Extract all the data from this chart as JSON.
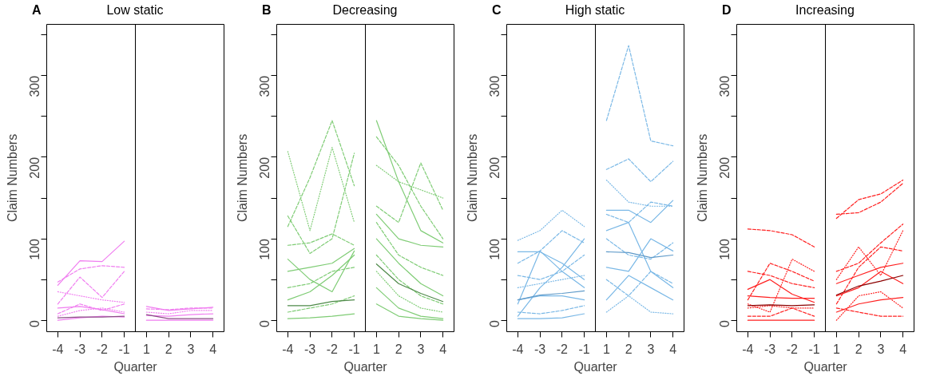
{
  "chart_data": [
    {
      "type": "line",
      "title": "Low static",
      "annotations": [
        "A"
      ],
      "xlabel": "Quarter",
      "ylabel": "Claim Numbers",
      "categories": [
        "-4",
        "-3",
        "-2",
        "-1",
        "1",
        "2",
        "3",
        "4"
      ],
      "ylim": [
        -14,
        363
      ],
      "yticks": [
        0,
        {
          "value": 50,
          "label": null
        },
        100,
        {
          "value": 150,
          "label": null
        },
        200,
        {
          "value": 250,
          "label": null
        },
        300,
        {
          "value": 350,
          "label": null
        }
      ],
      "grid": false,
      "series": [
        {
          "color": "#f07ef0",
          "line_style": "solid",
          "x": [
            "-4",
            "-3",
            "-2",
            "-1"
          ],
          "values": [
            43,
            73,
            72,
            97
          ]
        },
        {
          "color": "#f07ef0",
          "line_style": "dashed",
          "x": [
            "-4",
            "-3",
            "-2",
            "-1"
          ],
          "values": [
            47,
            63,
            67,
            65
          ]
        },
        {
          "color": "#f07ef0",
          "line_style": "dashed",
          "x": [
            "-4",
            "-3",
            "-2",
            "-1"
          ],
          "values": [
            20,
            53,
            28,
            60
          ]
        },
        {
          "color": "#f07ef0",
          "line_style": "dotted",
          "x": [
            "-4",
            "-3",
            "-2",
            "-1"
          ],
          "values": [
            35,
            30,
            25,
            22
          ]
        },
        {
          "color": "#f07ef0",
          "line_style": "dashed",
          "x": [
            "-4",
            "-3",
            "-2",
            "-1"
          ],
          "values": [
            8,
            20,
            12,
            20
          ]
        },
        {
          "color": "#f07ef0",
          "line_style": "solid",
          "x": [
            "-4",
            "-3",
            "-2",
            "-1"
          ],
          "values": [
            15,
            17,
            13,
            8
          ]
        },
        {
          "color": "#f07ef0",
          "line_style": "dotted",
          "x": [
            "-4",
            "-3",
            "-2",
            "-1"
          ],
          "values": [
            5,
            12,
            15,
            10
          ]
        },
        {
          "color": "#f07ef0",
          "line_style": "solid",
          "x": [
            "-4",
            "-3",
            "-2",
            "-1"
          ],
          "values": [
            0,
            3,
            5,
            4
          ]
        },
        {
          "color": "#f07ef0",
          "line_style": "solid",
          "x": [
            "1",
            "2",
            "3",
            "4"
          ],
          "values": [
            17,
            12,
            14,
            16
          ]
        },
        {
          "color": "#f07ef0",
          "line_style": "dashed",
          "x": [
            "1",
            "2",
            "3",
            "4"
          ],
          "values": [
            14,
            13,
            15,
            15
          ]
        },
        {
          "color": "#f07ef0",
          "line_style": "dotted",
          "x": [
            "1",
            "2",
            "3",
            "4"
          ],
          "values": [
            10,
            8,
            12,
            12
          ]
        },
        {
          "color": "#f07ef0",
          "line_style": "solid",
          "x": [
            "1",
            "2",
            "3",
            "4"
          ],
          "values": [
            6,
            5,
            7,
            8
          ]
        },
        {
          "color": "#f07ef0",
          "line_style": "solid",
          "x": [
            "1",
            "2",
            "3",
            "4"
          ],
          "values": [
            0,
            0,
            0,
            0
          ]
        },
        {
          "color": "#8b4f86",
          "line_style": "solid",
          "x": [
            "-4",
            "-3",
            "-2",
            "-1"
          ],
          "values": [
            3,
            4,
            4,
            5
          ]
        },
        {
          "color": "#8b4f86",
          "line_style": "solid",
          "x": [
            "1",
            "2",
            "3",
            "4"
          ],
          "values": [
            7,
            2,
            2,
            2
          ]
        }
      ]
    },
    {
      "type": "line",
      "title": "Decreasing",
      "annotations": [
        "B"
      ],
      "xlabel": "Quarter",
      "ylabel": "Claim Numbers",
      "categories": [
        "-4",
        "-3",
        "-2",
        "-1",
        "1",
        "2",
        "3",
        "4"
      ],
      "ylim": [
        -14,
        363
      ],
      "yticks": [
        0,
        {
          "value": 50,
          "label": null
        },
        100,
        {
          "value": 150,
          "label": null
        },
        200,
        {
          "value": 250,
          "label": null
        },
        300,
        {
          "value": 350,
          "label": null
        }
      ],
      "grid": false,
      "series": [
        {
          "color": "#7fcc75",
          "line_style": "dashed",
          "x": [
            "-4",
            "-3",
            "-2",
            "-1"
          ],
          "values": [
            115,
            175,
            245,
            165
          ]
        },
        {
          "color": "#7fcc75",
          "line_style": "dotted",
          "x": [
            "-4",
            "-3",
            "-2",
            "-1"
          ],
          "values": [
            207,
            110,
            212,
            120
          ]
        },
        {
          "color": "#7fcc75",
          "line_style": "dashed",
          "x": [
            "-4",
            "-3",
            "-2",
            "-1"
          ],
          "values": [
            128,
            82,
            100,
            205
          ]
        },
        {
          "color": "#7fcc75",
          "line_style": "dashed",
          "x": [
            "-4",
            "-3",
            "-2",
            "-1"
          ],
          "values": [
            92,
            95,
            106,
            92
          ]
        },
        {
          "color": "#7fcc75",
          "line_style": "solid",
          "x": [
            "-4",
            "-3",
            "-2",
            "-1"
          ],
          "values": [
            75,
            50,
            35,
            85
          ]
        },
        {
          "color": "#7fcc75",
          "line_style": "solid",
          "x": [
            "-4",
            "-3",
            "-2",
            "-1"
          ],
          "values": [
            60,
            65,
            70,
            88
          ]
        },
        {
          "color": "#7fcc75",
          "line_style": "dashed",
          "x": [
            "-4",
            "-3",
            "-2",
            "-1"
          ],
          "values": [
            40,
            45,
            60,
            65
          ]
        },
        {
          "color": "#7fcc75",
          "line_style": "solid",
          "x": [
            "-4",
            "-3",
            "-2",
            "-1"
          ],
          "values": [
            25,
            35,
            55,
            80
          ]
        },
        {
          "color": "#7fcc75",
          "line_style": "dashed",
          "x": [
            "-4",
            "-3",
            "-2",
            "-1"
          ],
          "values": [
            10,
            15,
            20,
            30
          ]
        },
        {
          "color": "#7fcc75",
          "line_style": "solid",
          "x": [
            "-4",
            "-3",
            "-2",
            "-1"
          ],
          "values": [
            2,
            3,
            5,
            8
          ]
        },
        {
          "color": "#7fcc75",
          "line_style": "solid",
          "x": [
            "1",
            "2",
            "3",
            "4"
          ],
          "values": [
            245,
            170,
            110,
            95
          ]
        },
        {
          "color": "#7fcc75",
          "line_style": "dashed",
          "x": [
            "1",
            "2",
            "3",
            "4"
          ],
          "values": [
            225,
            190,
            140,
            100
          ]
        },
        {
          "color": "#7fcc75",
          "line_style": "dashed",
          "x": [
            "1",
            "2",
            "3",
            "4"
          ],
          "values": [
            140,
            120,
            193,
            135
          ]
        },
        {
          "color": "#7fcc75",
          "line_style": "dotted",
          "x": [
            "1",
            "2",
            "3",
            "4"
          ],
          "values": [
            190,
            170,
            160,
            150
          ]
        },
        {
          "color": "#7fcc75",
          "line_style": "solid",
          "x": [
            "1",
            "2",
            "3",
            "4"
          ],
          "values": [
            130,
            100,
            92,
            90
          ]
        },
        {
          "color": "#7fcc75",
          "line_style": "dashed",
          "x": [
            "1",
            "2",
            "3",
            "4"
          ],
          "values": [
            120,
            80,
            65,
            55
          ]
        },
        {
          "color": "#7fcc75",
          "line_style": "solid",
          "x": [
            "1",
            "2",
            "3",
            "4"
          ],
          "values": [
            100,
            70,
            45,
            30
          ]
        },
        {
          "color": "#7fcc75",
          "line_style": "dashed",
          "x": [
            "1",
            "2",
            "3",
            "4"
          ],
          "values": [
            80,
            50,
            30,
            20
          ]
        },
        {
          "color": "#7fcc75",
          "line_style": "dotted",
          "x": [
            "1",
            "2",
            "3",
            "4"
          ],
          "values": [
            60,
            30,
            15,
            10
          ]
        },
        {
          "color": "#7fcc75",
          "line_style": "solid",
          "x": [
            "1",
            "2",
            "3",
            "4"
          ],
          "values": [
            40,
            15,
            5,
            2
          ]
        },
        {
          "color": "#7fcc75",
          "line_style": "solid",
          "x": [
            "1",
            "2",
            "3",
            "4"
          ],
          "values": [
            20,
            5,
            2,
            0
          ]
        },
        {
          "color": "#4f8a4a",
          "line_style": "solid",
          "x": [
            "-4",
            "-3",
            "-2",
            "-1"
          ],
          "values": [
            18,
            18,
            23,
            25
          ]
        },
        {
          "color": "#4f8a4a",
          "line_style": "solid",
          "x": [
            "1",
            "2",
            "3",
            "4"
          ],
          "values": [
            69,
            45,
            33,
            23
          ]
        }
      ]
    },
    {
      "type": "line",
      "title": "High static",
      "annotations": [
        "C"
      ],
      "xlabel": "Quarter",
      "ylabel": "Claim Numbers",
      "categories": [
        "-4",
        "-3",
        "-2",
        "-1",
        "1",
        "2",
        "3",
        "4"
      ],
      "ylim": [
        -14,
        363
      ],
      "yticks": [
        0,
        {
          "value": 50,
          "label": null
        },
        100,
        {
          "value": 150,
          "label": null
        },
        200,
        {
          "value": 250,
          "label": null
        },
        300,
        {
          "value": 350,
          "label": null
        }
      ],
      "grid": false,
      "series": [
        {
          "color": "#7ab8e6",
          "line_style": "dotted",
          "x": [
            "-4",
            "-3",
            "-2",
            "-1"
          ],
          "values": [
            98,
            110,
            135,
            115
          ]
        },
        {
          "color": "#7ab8e6",
          "line_style": "solid",
          "x": [
            "-4",
            "-3",
            "-2",
            "-1"
          ],
          "values": [
            84,
            84,
            70,
            50
          ]
        },
        {
          "color": "#7ab8e6",
          "line_style": "dashed",
          "x": [
            "-4",
            "-3",
            "-2",
            "-1"
          ],
          "values": [
            70,
            85,
            110,
            95
          ]
        },
        {
          "color": "#7ab8e6",
          "line_style": "solid",
          "x": [
            "-4",
            "-3",
            "-2",
            "-1"
          ],
          "values": [
            5,
            40,
            65,
            100
          ]
        },
        {
          "color": "#7ab8e6",
          "line_style": "solid",
          "x": [
            "-4",
            "-3",
            "-2",
            "-1"
          ],
          "values": [
            20,
            85,
            60,
            40
          ]
        },
        {
          "color": "#7ab8e6",
          "line_style": "dashed",
          "x": [
            "-4",
            "-3",
            "-2",
            "-1"
          ],
          "values": [
            55,
            50,
            60,
            80
          ]
        },
        {
          "color": "#7ab8e6",
          "line_style": "dotted",
          "x": [
            "-4",
            "-3",
            "-2",
            "-1"
          ],
          "values": [
            40,
            45,
            50,
            55
          ]
        },
        {
          "color": "#7ab8e6",
          "line_style": "solid",
          "x": [
            "-4",
            "-3",
            "-2",
            "-1"
          ],
          "values": [
            25,
            30,
            30,
            25
          ]
        },
        {
          "color": "#7ab8e6",
          "line_style": "dashed",
          "x": [
            "-4",
            "-3",
            "-2",
            "-1"
          ],
          "values": [
            10,
            8,
            12,
            18
          ]
        },
        {
          "color": "#7ab8e6",
          "line_style": "solid",
          "x": [
            "-4",
            "-3",
            "-2",
            "-1"
          ],
          "values": [
            2,
            2,
            3,
            8
          ]
        },
        {
          "color": "#7ab8e6",
          "line_style": "dashed",
          "x": [
            "1",
            "2",
            "3",
            "4"
          ],
          "values": [
            245,
            337,
            220,
            214
          ]
        },
        {
          "color": "#7ab8e6",
          "line_style": "dashed",
          "x": [
            "1",
            "2",
            "3",
            "4"
          ],
          "values": [
            185,
            198,
            170,
            195
          ]
        },
        {
          "color": "#7ab8e6",
          "line_style": "dotted",
          "x": [
            "1",
            "2",
            "3",
            "4"
          ],
          "values": [
            172,
            145,
            140,
            140
          ]
        },
        {
          "color": "#7ab8e6",
          "line_style": "solid",
          "x": [
            "1",
            "2",
            "3",
            "4"
          ],
          "values": [
            135,
            135,
            120,
            147
          ]
        },
        {
          "color": "#7ab8e6",
          "line_style": "dashed",
          "x": [
            "1",
            "2",
            "3",
            "4"
          ],
          "values": [
            130,
            120,
            145,
            140
          ]
        },
        {
          "color": "#7ab8e6",
          "line_style": "solid",
          "x": [
            "1",
            "2",
            "3",
            "4"
          ],
          "values": [
            110,
            120,
            60,
            40
          ]
        },
        {
          "color": "#7ab8e6",
          "line_style": "dashed",
          "x": [
            "1",
            "2",
            "3",
            "4"
          ],
          "values": [
            100,
            80,
            75,
            95
          ]
        },
        {
          "color": "#7ab8e6",
          "line_style": "solid",
          "x": [
            "1",
            "2",
            "3",
            "4"
          ],
          "values": [
            65,
            60,
            100,
            85
          ]
        },
        {
          "color": "#7ab8e6",
          "line_style": "dashed",
          "x": [
            "1",
            "2",
            "3",
            "4"
          ],
          "values": [
            50,
            30,
            60,
            45
          ]
        },
        {
          "color": "#7ab8e6",
          "line_style": "solid",
          "x": [
            "1",
            "2",
            "3",
            "4"
          ],
          "values": [
            25,
            55,
            40,
            25
          ]
        },
        {
          "color": "#7ab8e6",
          "line_style": "dotted",
          "x": [
            "1",
            "2",
            "3",
            "4"
          ],
          "values": [
            10,
            30,
            10,
            8
          ]
        },
        {
          "color": "#5f9ac9",
          "line_style": "solid",
          "x": [
            "-4",
            "-3",
            "-2",
            "-1"
          ],
          "values": [
            25,
            31,
            33,
            36
          ]
        },
        {
          "color": "#5f9ac9",
          "line_style": "solid",
          "x": [
            "1",
            "2",
            "3",
            "4"
          ],
          "values": [
            84,
            83,
            77,
            80
          ]
        }
      ]
    },
    {
      "type": "line",
      "title": "Increasing",
      "annotations": [
        "D"
      ],
      "xlabel": "Quarter",
      "ylabel": "Claim Numbers",
      "categories": [
        "-4",
        "-3",
        "-2",
        "-1",
        "1",
        "2",
        "3",
        "4"
      ],
      "ylim": [
        -14,
        363
      ],
      "yticks": [
        0,
        {
          "value": 50,
          "label": null
        },
        100,
        {
          "value": 150,
          "label": null
        },
        200,
        {
          "value": 250,
          "label": null
        },
        300,
        {
          "value": 350,
          "label": null
        }
      ],
      "grid": false,
      "series": [
        {
          "color": "#ff2020",
          "line_style": "dashed",
          "x": [
            "-4",
            "-3",
            "-2",
            "-1"
          ],
          "values": [
            112,
            110,
            105,
            90
          ]
        },
        {
          "color": "#ff2020",
          "line_style": "dashed",
          "x": [
            "-4",
            "-3",
            "-2",
            "-1"
          ],
          "values": [
            60,
            55,
            45,
            40
          ]
        },
        {
          "color": "#ff2020",
          "line_style": "dashed",
          "x": [
            "-4",
            "-3",
            "-2",
            "-1"
          ],
          "values": [
            25,
            70,
            60,
            48
          ]
        },
        {
          "color": "#ff2020",
          "line_style": "dotted",
          "x": [
            "-4",
            "-3",
            "-2",
            "-1"
          ],
          "values": [
            20,
            10,
            75,
            60
          ]
        },
        {
          "color": "#ff2020",
          "line_style": "solid",
          "x": [
            "-4",
            "-3",
            "-2",
            "-1"
          ],
          "values": [
            38,
            50,
            32,
            22
          ]
        },
        {
          "color": "#ff2020",
          "line_style": "solid",
          "x": [
            "-4",
            "-3",
            "-2",
            "-1"
          ],
          "values": [
            30,
            28,
            27,
            27
          ]
        },
        {
          "color": "#ff2020",
          "line_style": "dotted",
          "x": [
            "-4",
            "-3",
            "-2",
            "-1"
          ],
          "values": [
            15,
            18,
            15,
            15
          ]
        },
        {
          "color": "#ff2020",
          "line_style": "dashed",
          "x": [
            "-4",
            "-3",
            "-2",
            "-1"
          ],
          "values": [
            5,
            5,
            15,
            5
          ]
        },
        {
          "color": "#ff2020",
          "line_style": "solid",
          "x": [
            "-4",
            "-3",
            "-2",
            "-1"
          ],
          "values": [
            0,
            0,
            0,
            0
          ]
        },
        {
          "color": "#ff2020",
          "line_style": "dashed",
          "x": [
            "1",
            "2",
            "3",
            "4"
          ],
          "values": [
            125,
            148,
            155,
            172
          ]
        },
        {
          "color": "#ff2020",
          "line_style": "dashed",
          "x": [
            "1",
            "2",
            "3",
            "4"
          ],
          "values": [
            130,
            132,
            145,
            168
          ]
        },
        {
          "color": "#ff2020",
          "line_style": "dashed",
          "x": [
            "1",
            "2",
            "3",
            "4"
          ],
          "values": [
            60,
            70,
            95,
            118
          ]
        },
        {
          "color": "#ff2020",
          "line_style": "dotted",
          "x": [
            "1",
            "2",
            "3",
            "4"
          ],
          "values": [
            50,
            90,
            55,
            110
          ]
        },
        {
          "color": "#ff2020",
          "line_style": "solid",
          "x": [
            "1",
            "2",
            "3",
            "4"
          ],
          "values": [
            45,
            55,
            65,
            70
          ]
        },
        {
          "color": "#ff2020",
          "line_style": "dashed",
          "x": [
            "1",
            "2",
            "3",
            "4"
          ],
          "values": [
            20,
            65,
            90,
            85
          ]
        },
        {
          "color": "#ff2020",
          "line_style": "solid",
          "x": [
            "1",
            "2",
            "3",
            "4"
          ],
          "values": [
            30,
            40,
            60,
            45
          ]
        },
        {
          "color": "#ff2020",
          "line_style": "dashed",
          "x": [
            "1",
            "2",
            "3",
            "4"
          ],
          "values": [
            15,
            10,
            5,
            5
          ]
        },
        {
          "color": "#ff2020",
          "line_style": "solid",
          "x": [
            "1",
            "2",
            "3",
            "4"
          ],
          "values": [
            10,
            20,
            25,
            28
          ]
        },
        {
          "color": "#ff2020",
          "line_style": "dotted",
          "x": [
            "1",
            "2",
            "3",
            "4"
          ],
          "values": [
            0,
            30,
            35,
            15
          ]
        },
        {
          "color": "#8b0000",
          "line_style": "solid",
          "x": [
            "-4",
            "-3",
            "-2",
            "-1"
          ],
          "values": [
            18,
            19,
            18,
            19
          ]
        },
        {
          "color": "#8b0000",
          "line_style": "solid",
          "x": [
            "1",
            "2",
            "3",
            "4"
          ],
          "values": [
            31,
            42,
            48,
            55
          ]
        }
      ]
    }
  ]
}
